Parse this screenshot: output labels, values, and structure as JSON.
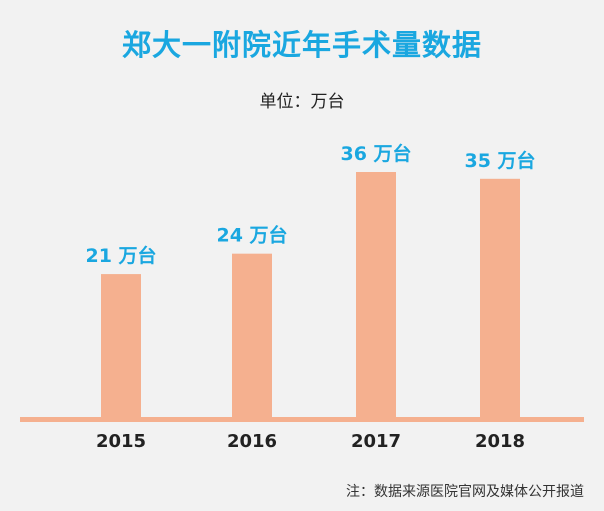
{
  "title": "郑大一附院近年手术量数据",
  "unit_label": "单位：万台",
  "source_note": "注：数据来源医院官网及媒体公开报道",
  "colors": {
    "title": "#1aa7e0",
    "bar": "#f5b08f",
    "data_label": "#1aa7e0",
    "baseline": "#f5b08f",
    "tick_label": "#222222"
  },
  "chart_data": {
    "type": "bar",
    "title": "郑大一附院近年手术量数据",
    "ylabel": "",
    "xlabel": "",
    "unit": "万台",
    "categories": [
      "2015",
      "2016",
      "2017",
      "2018"
    ],
    "values": [
      21,
      24,
      36,
      35
    ],
    "data_labels": [
      "21 万台",
      "24 万台",
      "36 万台",
      "35 万台"
    ],
    "ylim": [
      0,
      40
    ],
    "grid": false,
    "legend": "none"
  }
}
